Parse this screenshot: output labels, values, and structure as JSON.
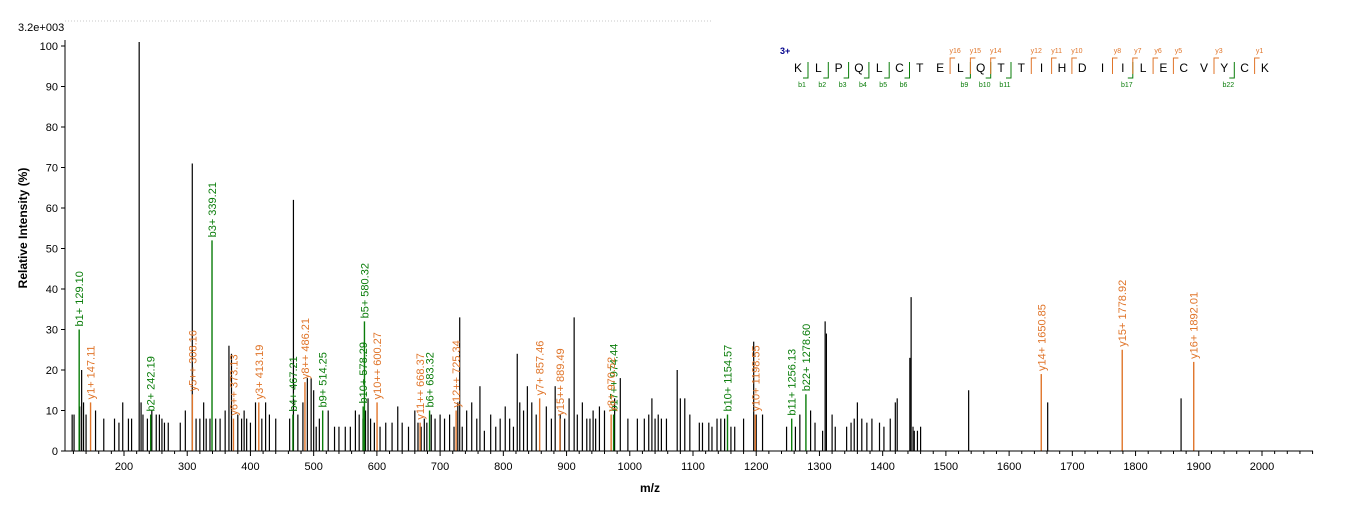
{
  "chart_data": {
    "type": "bar",
    "xlabel": "m/z",
    "ylabel": "Relative  Intensity (%)",
    "scale_label": "3.2e+003",
    "xlim": [
      115,
      2085
    ],
    "ylim": [
      0,
      102
    ],
    "x_ticks": [
      200,
      300,
      400,
      500,
      600,
      700,
      800,
      900,
      1000,
      1100,
      1200,
      1300,
      1400,
      1500,
      1600,
      1700,
      1800,
      1900,
      2000
    ],
    "y_ticks": [
      0,
      10,
      20,
      30,
      40,
      50,
      60,
      70,
      80,
      90,
      100
    ],
    "colors": {
      "b_ion": "#0a7d0a",
      "y_ion": "#e0752a",
      "unassigned": "#000000",
      "charge": "#00008b"
    },
    "unassigned_peaks": [
      [
        118,
        9
      ],
      [
        121,
        9
      ],
      [
        130,
        11
      ],
      [
        133,
        20
      ],
      [
        136,
        12
      ],
      [
        140,
        9
      ],
      [
        155,
        10
      ],
      [
        168,
        8
      ],
      [
        185,
        8
      ],
      [
        192,
        7
      ],
      [
        198,
        12
      ],
      [
        207,
        8
      ],
      [
        212,
        8
      ],
      [
        224,
        101
      ],
      [
        227,
        12
      ],
      [
        230,
        9
      ],
      [
        237,
        8
      ],
      [
        244,
        10
      ],
      [
        251,
        9
      ],
      [
        256,
        9
      ],
      [
        260,
        8
      ],
      [
        264,
        7
      ],
      [
        270,
        7
      ],
      [
        289,
        7
      ],
      [
        297,
        10
      ],
      [
        308,
        71
      ],
      [
        314,
        8
      ],
      [
        320,
        8
      ],
      [
        326,
        12
      ],
      [
        330,
        8
      ],
      [
        336,
        8
      ],
      [
        345,
        8
      ],
      [
        352,
        8
      ],
      [
        360,
        10
      ],
      [
        366,
        26
      ],
      [
        370,
        24
      ],
      [
        380,
        9
      ],
      [
        386,
        8
      ],
      [
        390,
        10
      ],
      [
        394,
        8
      ],
      [
        400,
        7
      ],
      [
        408,
        12
      ],
      [
        418,
        8
      ],
      [
        424,
        12
      ],
      [
        430,
        9
      ],
      [
        440,
        8
      ],
      [
        462,
        8
      ],
      [
        468,
        62
      ],
      [
        475,
        9
      ],
      [
        483,
        12
      ],
      [
        490,
        18
      ],
      [
        496,
        18
      ],
      [
        500,
        15
      ],
      [
        504,
        6
      ],
      [
        509,
        8
      ],
      [
        523,
        10
      ],
      [
        533,
        6
      ],
      [
        540,
        6
      ],
      [
        550,
        6
      ],
      [
        558,
        6
      ],
      [
        566,
        10
      ],
      [
        572,
        9
      ],
      [
        578,
        8
      ],
      [
        582,
        10
      ],
      [
        586,
        13
      ],
      [
        590,
        8
      ],
      [
        596,
        7
      ],
      [
        605,
        6
      ],
      [
        614,
        7
      ],
      [
        624,
        7
      ],
      [
        633,
        11
      ],
      [
        640,
        7
      ],
      [
        650,
        6
      ],
      [
        660,
        10
      ],
      [
        665,
        7
      ],
      [
        670,
        6
      ],
      [
        675,
        8
      ],
      [
        679,
        7
      ],
      [
        686,
        9
      ],
      [
        692,
        8
      ],
      [
        700,
        9
      ],
      [
        707,
        8
      ],
      [
        715,
        9
      ],
      [
        722,
        6
      ],
      [
        728,
        12
      ],
      [
        731,
        33
      ],
      [
        735,
        6
      ],
      [
        742,
        10
      ],
      [
        750,
        12
      ],
      [
        758,
        8
      ],
      [
        763,
        16
      ],
      [
        770,
        5
      ],
      [
        780,
        9
      ],
      [
        788,
        6
      ],
      [
        795,
        8
      ],
      [
        803,
        11
      ],
      [
        810,
        8
      ],
      [
        816,
        6
      ],
      [
        822,
        24
      ],
      [
        826,
        12
      ],
      [
        832,
        10
      ],
      [
        838,
        16
      ],
      [
        845,
        12
      ],
      [
        852,
        9
      ],
      [
        868,
        11
      ],
      [
        876,
        8
      ],
      [
        882,
        16
      ],
      [
        890,
        9
      ],
      [
        897,
        8
      ],
      [
        904,
        13
      ],
      [
        912,
        33
      ],
      [
        917,
        9
      ],
      [
        925,
        12
      ],
      [
        932,
        8
      ],
      [
        937,
        8
      ],
      [
        942,
        10
      ],
      [
        946,
        8
      ],
      [
        952,
        11
      ],
      [
        960,
        10
      ],
      [
        976,
        13
      ],
      [
        985,
        18
      ],
      [
        997,
        8
      ],
      [
        1012,
        8
      ],
      [
        1023,
        8
      ],
      [
        1030,
        9
      ],
      [
        1035,
        13
      ],
      [
        1040,
        8
      ],
      [
        1045,
        9
      ],
      [
        1050,
        8
      ],
      [
        1058,
        8
      ],
      [
        1075,
        20
      ],
      [
        1080,
        13
      ],
      [
        1087,
        13
      ],
      [
        1095,
        9
      ],
      [
        1110,
        7
      ],
      [
        1115,
        7
      ],
      [
        1125,
        7
      ],
      [
        1130,
        6
      ],
      [
        1138,
        8
      ],
      [
        1144,
        8
      ],
      [
        1150,
        8
      ],
      [
        1160,
        6
      ],
      [
        1166,
        6
      ],
      [
        1180,
        8
      ],
      [
        1196,
        27
      ],
      [
        1200,
        9
      ],
      [
        1210,
        9
      ],
      [
        1248,
        6
      ],
      [
        1262,
        6
      ],
      [
        1269,
        9
      ],
      [
        1286,
        10
      ],
      [
        1293,
        7
      ],
      [
        1305,
        5
      ],
      [
        1309,
        32
      ],
      [
        1311,
        29
      ],
      [
        1320,
        9
      ],
      [
        1325,
        6
      ],
      [
        1343,
        6
      ],
      [
        1350,
        7
      ],
      [
        1355,
        8
      ],
      [
        1360,
        12
      ],
      [
        1367,
        8
      ],
      [
        1375,
        7
      ],
      [
        1383,
        8
      ],
      [
        1395,
        7
      ],
      [
        1402,
        6
      ],
      [
        1412,
        8
      ],
      [
        1420,
        12
      ],
      [
        1423,
        13
      ],
      [
        1443,
        23
      ],
      [
        1445,
        38
      ],
      [
        1448,
        6
      ],
      [
        1450,
        5
      ],
      [
        1455,
        5
      ],
      [
        1460,
        6
      ],
      [
        1536,
        15
      ],
      [
        1661,
        12
      ],
      [
        1872,
        13
      ]
    ],
    "b_ions": [
      {
        "mz": 129.1,
        "y": 30,
        "label": "b1+ 129.10"
      },
      {
        "mz": 242.19,
        "y": 9,
        "label": "b2+ 242.19"
      },
      {
        "mz": 339.21,
        "y": 52,
        "label": "b3+ 339.21"
      },
      {
        "mz": 467.21,
        "y": 9,
        "label": "b4+ 467.21"
      },
      {
        "mz": 514.25,
        "y": 10,
        "label": "b9+ 514.25"
      },
      {
        "mz": 578.29,
        "y": 11,
        "label": "b10+ 578.29"
      },
      {
        "mz": 580.32,
        "y": 32,
        "label": "b5+ 580.32"
      },
      {
        "mz": 683.32,
        "y": 10,
        "label": "b6+ 683.32"
      },
      {
        "mz": 974.44,
        "y": 9,
        "label": "b17++ 974.44"
      },
      {
        "mz": 1154.57,
        "y": 9,
        "label": "b10+ 1154.57"
      },
      {
        "mz": 1256.13,
        "y": 8,
        "label": "b11+ 1256.13"
      },
      {
        "mz": 1278.6,
        "y": 14,
        "label": "b22+ 1278.60"
      }
    ],
    "y_ions": [
      {
        "mz": 147.11,
        "y": 12,
        "label": "y1+ 147.11"
      },
      {
        "mz": 308.16,
        "y": 14,
        "label": "y5++ 308.16"
      },
      {
        "mz": 373.13,
        "y": 8,
        "label": "y6++ 373.13"
      },
      {
        "mz": 413.19,
        "y": 12,
        "label": "y3+ 413.19"
      },
      {
        "mz": 486.21,
        "y": 17,
        "label": "y8++ 486.21"
      },
      {
        "mz": 600.27,
        "y": 12,
        "label": "y10++ 600.27"
      },
      {
        "mz": 668.37,
        "y": 7,
        "label": "y11++ 668.37"
      },
      {
        "mz": 725.34,
        "y": 10,
        "label": "y12++ 725.34"
      },
      {
        "mz": 857.46,
        "y": 13,
        "label": "y7+ 857.46"
      },
      {
        "mz": 889.49,
        "y": 8,
        "label": "y15++ 889.49"
      },
      {
        "mz": 970.52,
        "y": 9,
        "label": "y8+ 970.52"
      },
      {
        "mz": 1198.55,
        "y": 9,
        "label": "y10+ 1198.55"
      },
      {
        "mz": 1650.85,
        "y": 19,
        "label": "y14+ 1650.85"
      },
      {
        "mz": 1778.92,
        "y": 25,
        "label": "y15+ 1778.92"
      },
      {
        "mz": 1892.01,
        "y": 22,
        "label": "y16+ 1892.01"
      }
    ]
  },
  "sequence": {
    "charge": "3+",
    "residues": [
      "K",
      "L",
      "P",
      "Q",
      "L",
      "C",
      "T",
      "E",
      "L",
      "Q",
      "T",
      "T",
      "I",
      "H",
      "D",
      "I",
      "I",
      "L",
      "E",
      "C",
      "V",
      "Y",
      "C",
      "K"
    ],
    "b_marks": [
      {
        "after": 0,
        "text": "b1"
      },
      {
        "after": 1,
        "text": "b2"
      },
      {
        "after": 2,
        "text": "b3"
      },
      {
        "after": 3,
        "text": "b4"
      },
      {
        "after": 4,
        "text": "b5"
      },
      {
        "after": 5,
        "text": "b6"
      },
      {
        "after": 8,
        "text": "b9"
      },
      {
        "after": 9,
        "text": "b10"
      },
      {
        "after": 10,
        "text": "b11"
      },
      {
        "after": 16,
        "text": "b17"
      },
      {
        "after": 21,
        "text": "b22"
      }
    ],
    "y_marks": [
      {
        "after": 7,
        "text": "y16"
      },
      {
        "after": 8,
        "text": "y15"
      },
      {
        "after": 9,
        "text": "y14"
      },
      {
        "after": 11,
        "text": "y12"
      },
      {
        "after": 12,
        "text": "y11"
      },
      {
        "after": 13,
        "text": "y10"
      },
      {
        "after": 15,
        "text": "y8"
      },
      {
        "after": 16,
        "text": "y7"
      },
      {
        "after": 17,
        "text": "y6"
      },
      {
        "after": 18,
        "text": "y5"
      },
      {
        "after": 20,
        "text": "y3"
      },
      {
        "after": 22,
        "text": "y1"
      }
    ]
  }
}
